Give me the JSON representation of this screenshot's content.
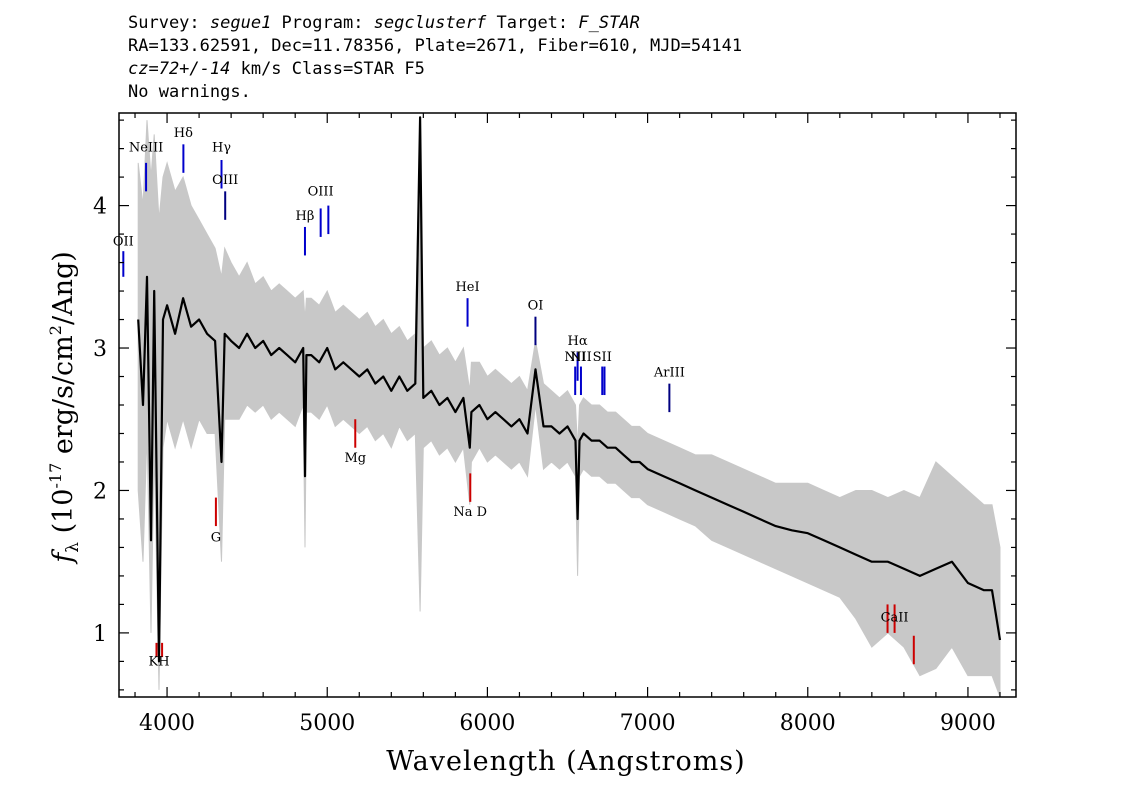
{
  "header": {
    "line1": {
      "survey_label": "Survey: ",
      "survey": "segue1",
      "program_label": " Program: ",
      "program": "segclusterf",
      "target_label": " Target: ",
      "target": "F_STAR"
    },
    "line2": "RA=133.62591, Dec=11.78356, Plate=2671, Fiber=610, MJD=54141",
    "line3": {
      "cz": "cz=72+/-14",
      "rest": " km/s Class=STAR F5"
    },
    "line4": "No warnings."
  },
  "chart_data": {
    "type": "line",
    "xlabel": "Wavelength (Angstroms)",
    "ylabel_prefix": "f",
    "ylabel_sub": "λ",
    "ylabel_main": " (10",
    "ylabel_sup": "-17",
    "ylabel_unit": " erg/s/cm",
    "ylabel_sup2": "2",
    "ylabel_end": "/Ang)",
    "xlim": [
      3700,
      9300
    ],
    "ylim": [
      0.55,
      4.65
    ],
    "xticks": [
      4000,
      5000,
      6000,
      7000,
      8000,
      9000
    ],
    "yticks": [
      1,
      2,
      3,
      4
    ],
    "series": [
      {
        "color": "#000000",
        "x": [
          3820,
          3850,
          3875,
          3900,
          3920,
          3950,
          3975,
          4000,
          4050,
          4100,
          4150,
          4200,
          4250,
          4300,
          4340,
          4360,
          4400,
          4450,
          4500,
          4550,
          4600,
          4650,
          4700,
          4750,
          4800,
          4850,
          4861,
          4870,
          4900,
          4950,
          5000,
          5050,
          5100,
          5150,
          5200,
          5250,
          5300,
          5350,
          5400,
          5450,
          5500,
          5550,
          5580,
          5600,
          5650,
          5700,
          5750,
          5800,
          5850,
          5890,
          5900,
          5950,
          6000,
          6050,
          6100,
          6150,
          6200,
          6250,
          6300,
          6350,
          6400,
          6450,
          6500,
          6550,
          6563,
          6575,
          6600,
          6650,
          6700,
          6750,
          6800,
          6850,
          6900,
          6950,
          7000,
          7100,
          7200,
          7300,
          7400,
          7500,
          7600,
          7700,
          7800,
          7900,
          8000,
          8100,
          8200,
          8300,
          8400,
          8500,
          8600,
          8700,
          8800,
          8900,
          9000,
          9100,
          9150,
          9200
        ],
        "y": [
          3.2,
          2.6,
          3.5,
          1.65,
          3.4,
          0.8,
          3.2,
          3.3,
          3.1,
          3.35,
          3.15,
          3.2,
          3.1,
          3.05,
          2.2,
          3.1,
          3.05,
          3.0,
          3.1,
          3.0,
          3.05,
          2.95,
          3.0,
          2.95,
          2.9,
          3.0,
          2.1,
          2.95,
          2.95,
          2.9,
          3.0,
          2.85,
          2.9,
          2.85,
          2.8,
          2.85,
          2.75,
          2.8,
          2.7,
          2.8,
          2.7,
          2.75,
          4.62,
          2.65,
          2.7,
          2.6,
          2.65,
          2.55,
          2.65,
          2.3,
          2.55,
          2.6,
          2.5,
          2.55,
          2.5,
          2.45,
          2.5,
          2.4,
          2.85,
          2.45,
          2.45,
          2.4,
          2.45,
          2.35,
          1.8,
          2.35,
          2.4,
          2.35,
          2.35,
          2.3,
          2.3,
          2.25,
          2.2,
          2.2,
          2.15,
          2.1,
          2.05,
          2.0,
          1.95,
          1.9,
          1.85,
          1.8,
          1.75,
          1.72,
          1.7,
          1.65,
          1.6,
          1.55,
          1.5,
          1.5,
          1.45,
          1.4,
          1.45,
          1.5,
          1.35,
          1.3,
          1.3,
          0.95
        ]
      }
    ],
    "error_band": {
      "color": "#c8c8c8",
      "upper": [
        4.3,
        4.0,
        4.6,
        4.2,
        4.5,
        3.9,
        4.2,
        4.3,
        4.1,
        4.2,
        4.0,
        3.9,
        3.8,
        3.7,
        3.5,
        3.7,
        3.6,
        3.5,
        3.6,
        3.45,
        3.5,
        3.4,
        3.45,
        3.4,
        3.35,
        3.4,
        3.2,
        3.35,
        3.35,
        3.3,
        3.4,
        3.25,
        3.3,
        3.25,
        3.2,
        3.25,
        3.15,
        3.2,
        3.1,
        3.15,
        3.05,
        3.1,
        4.62,
        3.0,
        3.05,
        2.95,
        3.0,
        2.9,
        3.0,
        2.7,
        2.9,
        2.9,
        2.8,
        2.85,
        2.8,
        2.75,
        2.8,
        2.7,
        3.05,
        2.75,
        2.7,
        2.65,
        2.7,
        2.6,
        2.3,
        2.6,
        2.65,
        2.6,
        2.6,
        2.55,
        2.55,
        2.5,
        2.45,
        2.45,
        2.4,
        2.35,
        2.3,
        2.25,
        2.25,
        2.2,
        2.15,
        2.1,
        2.05,
        2.05,
        2.05,
        2.0,
        1.95,
        2.0,
        2.0,
        1.95,
        2.0,
        1.95,
        2.2,
        2.1,
        2.0,
        1.9,
        1.9,
        1.6
      ],
      "lower": [
        2.0,
        1.5,
        2.4,
        1.0,
        2.3,
        0.6,
        2.3,
        2.5,
        2.3,
        2.5,
        2.3,
        2.5,
        2.4,
        2.4,
        1.5,
        2.5,
        2.5,
        2.5,
        2.6,
        2.55,
        2.6,
        2.5,
        2.55,
        2.5,
        2.45,
        2.6,
        1.6,
        2.55,
        2.55,
        2.5,
        2.6,
        2.45,
        2.5,
        2.45,
        2.4,
        2.45,
        2.35,
        2.4,
        2.3,
        2.45,
        2.35,
        2.4,
        1.15,
        2.3,
        2.35,
        2.25,
        2.3,
        2.2,
        2.3,
        1.9,
        2.2,
        2.3,
        2.2,
        2.25,
        2.2,
        2.15,
        2.2,
        2.1,
        2.6,
        2.15,
        2.2,
        2.15,
        2.2,
        2.1,
        1.4,
        2.1,
        2.15,
        2.1,
        2.1,
        2.05,
        2.05,
        2.0,
        1.95,
        1.95,
        1.9,
        1.85,
        1.8,
        1.75,
        1.65,
        1.6,
        1.55,
        1.5,
        1.45,
        1.4,
        1.35,
        1.3,
        1.25,
        1.1,
        0.9,
        1.0,
        0.9,
        0.7,
        0.75,
        0.9,
        0.7,
        0.7,
        0.7,
        0.55
      ]
    },
    "emission_lines": [
      {
        "label": "NeIII",
        "x": 3869,
        "y_label": 4.38,
        "y_top": 4.3,
        "y_bot": 4.1,
        "color": "#0000cc"
      },
      {
        "label": "Hδ",
        "x": 4102,
        "y_label": 4.48,
        "y_top": 4.43,
        "y_bot": 4.23,
        "color": "#0000cc"
      },
      {
        "label": "Hγ",
        "x": 4340,
        "y_label": 4.38,
        "y_top": 4.32,
        "y_bot": 4.12,
        "color": "#0000cc"
      },
      {
        "label": "OIII",
        "x": 4363,
        "y_label": 4.15,
        "y_top": 4.1,
        "y_bot": 3.9,
        "color": "#000080"
      },
      {
        "label": "OII",
        "x": 3727,
        "y_label": 3.72,
        "y_top": 3.68,
        "y_bot": 3.5,
        "color": "#0000cc"
      },
      {
        "label": "Hβ",
        "x": 4861,
        "y_label": 3.9,
        "y_top": 3.85,
        "y_bot": 3.65,
        "color": "#0000cc"
      },
      {
        "label": "OIII",
        "x": 4959,
        "y_label": 4.07,
        "y_top": 3.98,
        "y_bot": 3.78,
        "color": "#0000cc"
      },
      {
        "label": "",
        "x": 5007,
        "y_label": 4.07,
        "y_top": 4.0,
        "y_bot": 3.8,
        "color": "#0000cc"
      },
      {
        "label": "HeI",
        "x": 5876,
        "y_label": 3.4,
        "y_top": 3.35,
        "y_bot": 3.15,
        "color": "#0000cc"
      },
      {
        "label": "OI",
        "x": 6300,
        "y_label": 3.27,
        "y_top": 3.22,
        "y_bot": 3.02,
        "color": "#000080"
      },
      {
        "label": "Hα",
        "x": 6563,
        "y_label": 3.02,
        "y_top": 2.97,
        "y_bot": 2.77,
        "color": "#0000cc"
      },
      {
        "label": "NII",
        "x": 6548,
        "y_label": 2.91,
        "y_top": 2.87,
        "y_bot": 2.67,
        "color": "#0000cc"
      },
      {
        "label": "NII",
        "x": 6584,
        "y_label": 2.91,
        "y_top": 2.87,
        "y_bot": 2.67,
        "color": "#0000cc"
      },
      {
        "label": "SII",
        "x": 6717,
        "y_label": 2.91,
        "y_top": 2.87,
        "y_bot": 2.67,
        "color": "#0000cc"
      },
      {
        "label": "",
        "x": 6731,
        "y_label": 2.91,
        "y_top": 2.87,
        "y_bot": 2.67,
        "color": "#0000cc"
      },
      {
        "label": "ArIII",
        "x": 7136,
        "y_label": 2.8,
        "y_top": 2.75,
        "y_bot": 2.55,
        "color": "#000080"
      }
    ],
    "absorption_lines": [
      {
        "label": "KH",
        "x": 3950,
        "y_label": 0.77,
        "y_top": 0.93,
        "y_bot": 0.83,
        "xs": [
          3934,
          3969
        ],
        "color": "#cc0000"
      },
      {
        "label": "G",
        "x": 4305,
        "y_label": 1.64,
        "y_top": 1.95,
        "y_bot": 1.75,
        "xs": [
          4305
        ],
        "color": "#cc0000"
      },
      {
        "label": "Mg",
        "x": 5175,
        "y_label": 2.2,
        "y_top": 2.5,
        "y_bot": 2.3,
        "xs": [
          5175
        ],
        "color": "#cc0000"
      },
      {
        "label": "Na D",
        "x": 5893,
        "y_label": 1.82,
        "y_top": 2.12,
        "y_bot": 1.92,
        "xs": [
          5893
        ],
        "color": "#cc0000"
      },
      {
        "label": "CaII",
        "x": 8542,
        "y_label": 1.08,
        "y_top": 1.2,
        "y_bot": 1.0,
        "xs": [
          8498,
          8542
        ],
        "color": "#cc0000"
      },
      {
        "label": "",
        "x": 8662,
        "y_label": 0.8,
        "y_top": 0.98,
        "y_bot": 0.78,
        "xs": [
          8662
        ],
        "color": "#cc0000"
      }
    ]
  }
}
